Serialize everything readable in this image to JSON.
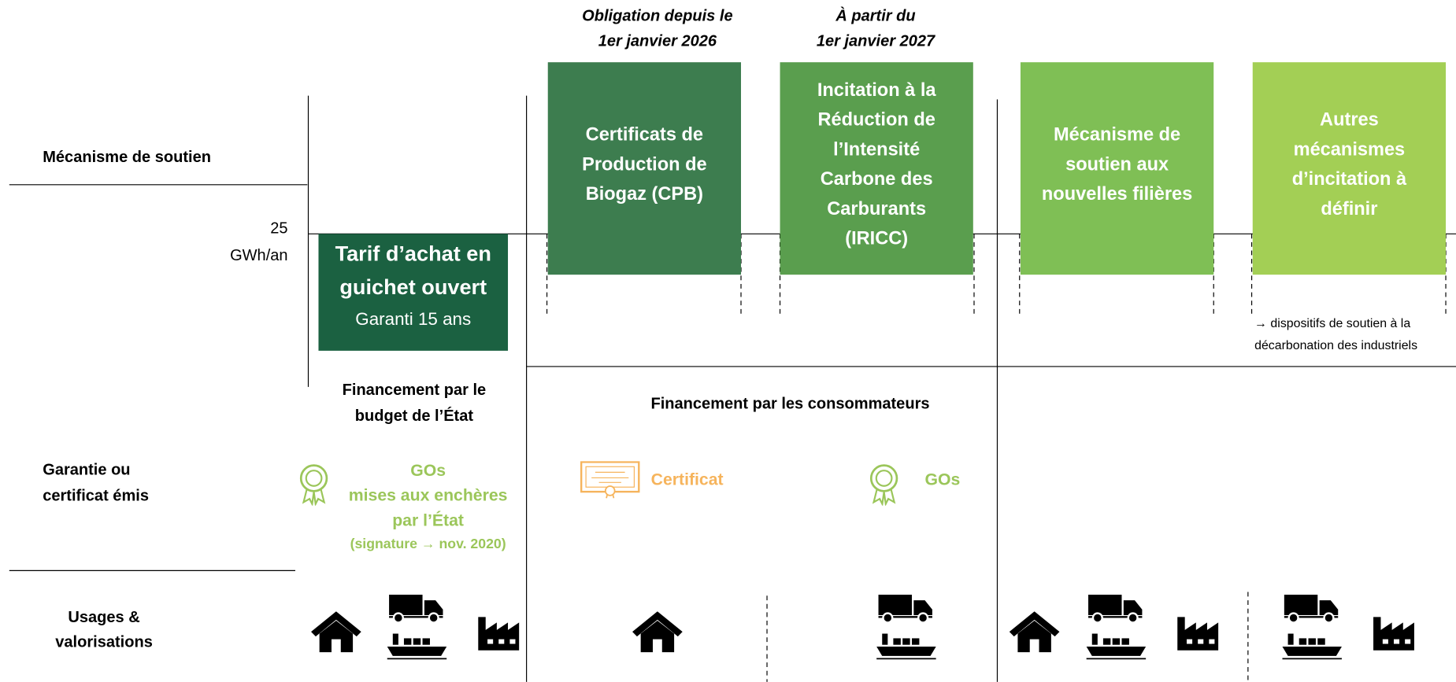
{
  "row_labels": [
    [
      "Mécanisme de soutien"
    ],
    [
      "Garantie ou",
      "certificat émis"
    ],
    [
      "Usages &",
      "valorisations"
    ]
  ],
  "threshold": {
    "value": "25",
    "unit": "GWh/an"
  },
  "timing": [
    [
      "Obligation depuis le",
      "1er janvier 2026"
    ],
    [
      "À partir du",
      "1er janvier 2027"
    ]
  ],
  "tarif": {
    "title": [
      "Tarif d’achat en",
      "guichet ouvert"
    ],
    "subtitle": "Garanti 15 ans"
  },
  "boxes": [
    [
      "Certificats de",
      "Production de",
      "Biogaz (CPB)"
    ],
    [
      "Incitation à la",
      "Réduction de",
      "l’Intensité",
      "Carbone des",
      "Carburants",
      "(IRICC)"
    ],
    [
      "Mécanisme de",
      "soutien aux",
      "nouvelles filières"
    ],
    [
      "Autres",
      "mécanismes",
      "d’incitation à",
      "définir"
    ]
  ],
  "note": [
    "→ dispositifs de soutien à la",
    "décarbonation des industriels"
  ],
  "funding": [
    [
      "Financement par le",
      "budget de l’État"
    ],
    [
      "Financement par les consommateurs"
    ]
  ],
  "certificates": [
    {
      "lines": [
        "GOs",
        "mises aux enchères",
        "par l’État"
      ],
      "note": "(signature → nov. 2020)"
    },
    {
      "lines": [
        "Certificat"
      ]
    },
    {
      "lines": [
        "GOs"
      ]
    }
  ]
}
